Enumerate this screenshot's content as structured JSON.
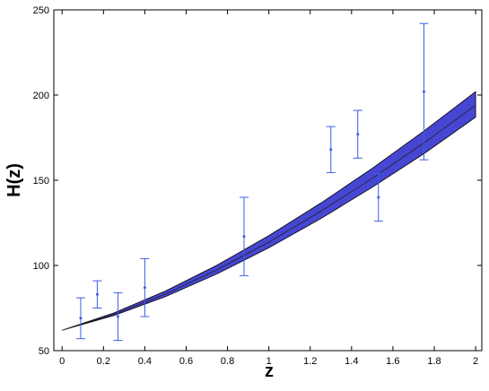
{
  "chart_data": {
    "type": "errorbar",
    "xlabel": "z",
    "ylabel": "H(z)",
    "xlim": [
      -0.04,
      2.03
    ],
    "ylim": [
      50,
      250
    ],
    "xticks": [
      0,
      0.2,
      0.4,
      0.6,
      0.8,
      1,
      1.2,
      1.4,
      1.6,
      1.8,
      2
    ],
    "yticks": [
      50,
      100,
      150,
      200,
      250
    ],
    "points": {
      "color": "#3b5ee0",
      "x": [
        0.09,
        0.17,
        0.27,
        0.4,
        0.88,
        1.3,
        1.43,
        1.53,
        1.75
      ],
      "values": [
        69,
        83,
        70,
        87,
        117,
        168,
        177,
        140,
        202
      ],
      "errors": [
        12,
        8,
        14,
        17,
        23,
        13.5,
        14,
        14,
        40
      ]
    },
    "band": {
      "color": "#4646d2",
      "x": [
        0,
        0.25,
        0.5,
        0.75,
        1,
        1.25,
        1.5,
        1.75,
        2
      ],
      "lower": [
        62,
        70.6,
        81.7,
        95.1,
        110.4,
        127.4,
        145.9,
        165.6,
        187
      ],
      "upper": [
        62,
        72.1,
        85.0,
        100.2,
        117.5,
        136.5,
        157.0,
        178.9,
        202
      ],
      "center": [
        62,
        71.3,
        83.2,
        97.5,
        113.7,
        131.7,
        151.1,
        171.9,
        194
      ]
    }
  }
}
